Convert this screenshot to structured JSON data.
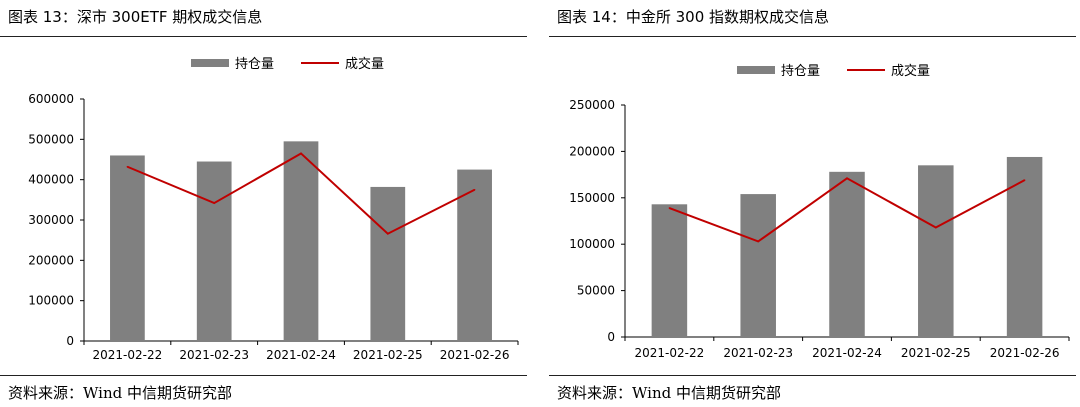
{
  "panels": [
    {
      "figure_title": "图表 13：深市 300ETF 期权成交信息",
      "source": "资料来源：Wind  中信期货研究部",
      "legend": [
        {
          "label": "持仓量",
          "kind": "bar",
          "color": "#808080"
        },
        {
          "label": "成交量",
          "kind": "line",
          "color": "#c00000"
        }
      ]
    },
    {
      "figure_title": "图表 14：中金所 300 指数期权成交信息",
      "source": "资料来源：Wind  中信期货研究部",
      "legend": [
        {
          "label": "持仓量",
          "kind": "bar",
          "color": "#808080"
        },
        {
          "label": "成交量",
          "kind": "line",
          "color": "#c00000"
        }
      ]
    }
  ],
  "chart_data": [
    {
      "type": "bar",
      "title": "",
      "categories": [
        "2021-02-22",
        "2021-02-23",
        "2021-02-24",
        "2021-02-25",
        "2021-02-26"
      ],
      "series": [
        {
          "name": "持仓量",
          "type": "bar",
          "color": "#808080",
          "values": [
            460000,
            445000,
            495000,
            382000,
            425000
          ]
        },
        {
          "name": "成交量",
          "type": "line",
          "color": "#c00000",
          "values": [
            432000,
            342000,
            465000,
            266000,
            375000
          ]
        }
      ],
      "ylim": [
        0,
        600000
      ],
      "yticks": [
        "0",
        "100000",
        "200000",
        "300000",
        "400000",
        "500000",
        "600000"
      ],
      "legend_position": "top-center",
      "grid": false
    },
    {
      "type": "bar",
      "title": "",
      "categories": [
        "2021-02-22",
        "2021-02-23",
        "2021-02-24",
        "2021-02-25",
        "2021-02-26"
      ],
      "series": [
        {
          "name": "持仓量",
          "type": "bar",
          "color": "#808080",
          "values": [
            143000,
            154000,
            178000,
            185000,
            194000
          ]
        },
        {
          "name": "成交量",
          "type": "line",
          "color": "#c00000",
          "values": [
            139000,
            103000,
            171000,
            118000,
            169000
          ]
        }
      ],
      "ylim": [
        0,
        250000
      ],
      "yticks": [
        "0",
        "50000",
        "100000",
        "150000",
        "200000",
        "250000"
      ],
      "legend_position": "top-center",
      "grid": false
    }
  ]
}
